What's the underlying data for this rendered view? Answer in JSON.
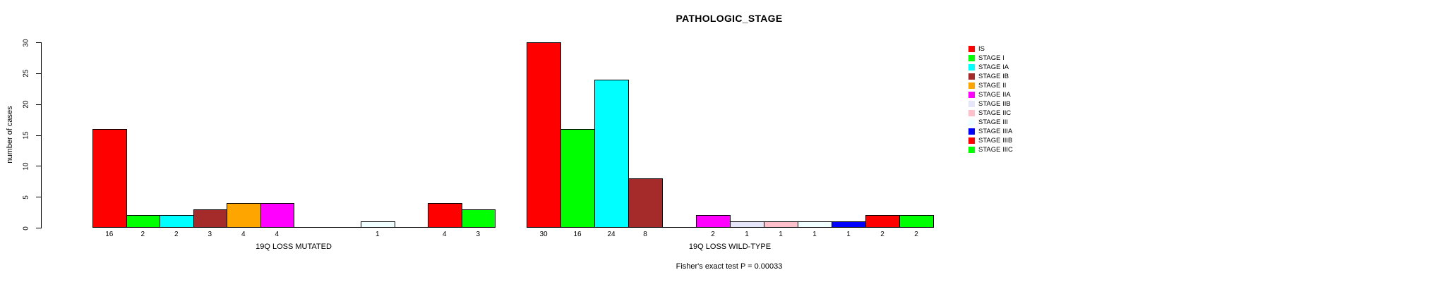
{
  "title": "PATHOLOGIC_STAGE",
  "footer": "Fisher's exact test P = 0.00033",
  "y_axis": {
    "label": "number of cases",
    "ticks": [
      0,
      5,
      10,
      15,
      20,
      25,
      30
    ]
  },
  "chart_data": {
    "type": "bar",
    "title": "PATHOLOGIC_STAGE",
    "xlabel": "",
    "ylabel": "number of cases",
    "ylim": [
      0,
      30
    ],
    "grid": false,
    "legend_position": "right",
    "categories": [
      "IS",
      "STAGE I",
      "STAGE IA",
      "STAGE IB",
      "STAGE II",
      "STAGE IIA",
      "STAGE IIB",
      "STAGE IIC",
      "STAGE III",
      "STAGE IIIA",
      "STAGE IIIB",
      "STAGE IIIC"
    ],
    "colors": [
      "#FF0000",
      "#00FF00",
      "#00FFFF",
      "#A52A2A",
      "#FFA500",
      "#FF00FF",
      "#E6E6FA",
      "#FFC0CB",
      "#F0FFFF",
      "#0000FF",
      "#FF0000",
      "#00FF00"
    ],
    "series": [
      {
        "name": "19Q LOSS MUTATED",
        "values": [
          16,
          2,
          2,
          3,
          4,
          4,
          0,
          0,
          1,
          0,
          4,
          3
        ]
      },
      {
        "name": "19Q LOSS WILD-TYPE",
        "values": [
          30,
          16,
          24,
          8,
          0,
          2,
          1,
          1,
          1,
          1,
          2,
          2
        ]
      }
    ],
    "bar_value_labels_shown_only_for_nonzero": true,
    "annotation": "Fisher's exact test P = 0.00033",
    "legend": [
      {
        "label": "IS",
        "color": "#FF0000"
      },
      {
        "label": "STAGE I",
        "color": "#00FF00"
      },
      {
        "label": "STAGE IA",
        "color": "#00FFFF"
      },
      {
        "label": "STAGE IB",
        "color": "#A52A2A"
      },
      {
        "label": "STAGE II",
        "color": "#FFA500"
      },
      {
        "label": "STAGE IIA",
        "color": "#FF00FF"
      },
      {
        "label": "STAGE IIB",
        "color": "#E6E6FA"
      },
      {
        "label": "STAGE IIC",
        "color": "#FFC0CB"
      },
      {
        "label": "STAGE III",
        "color": "#F0FFFF"
      },
      {
        "label": "STAGE IIIA",
        "color": "#0000FF"
      },
      {
        "label": "STAGE IIIB",
        "color": "#FF0000"
      },
      {
        "label": "STAGE IIIC",
        "color": "#00FF00"
      }
    ]
  }
}
